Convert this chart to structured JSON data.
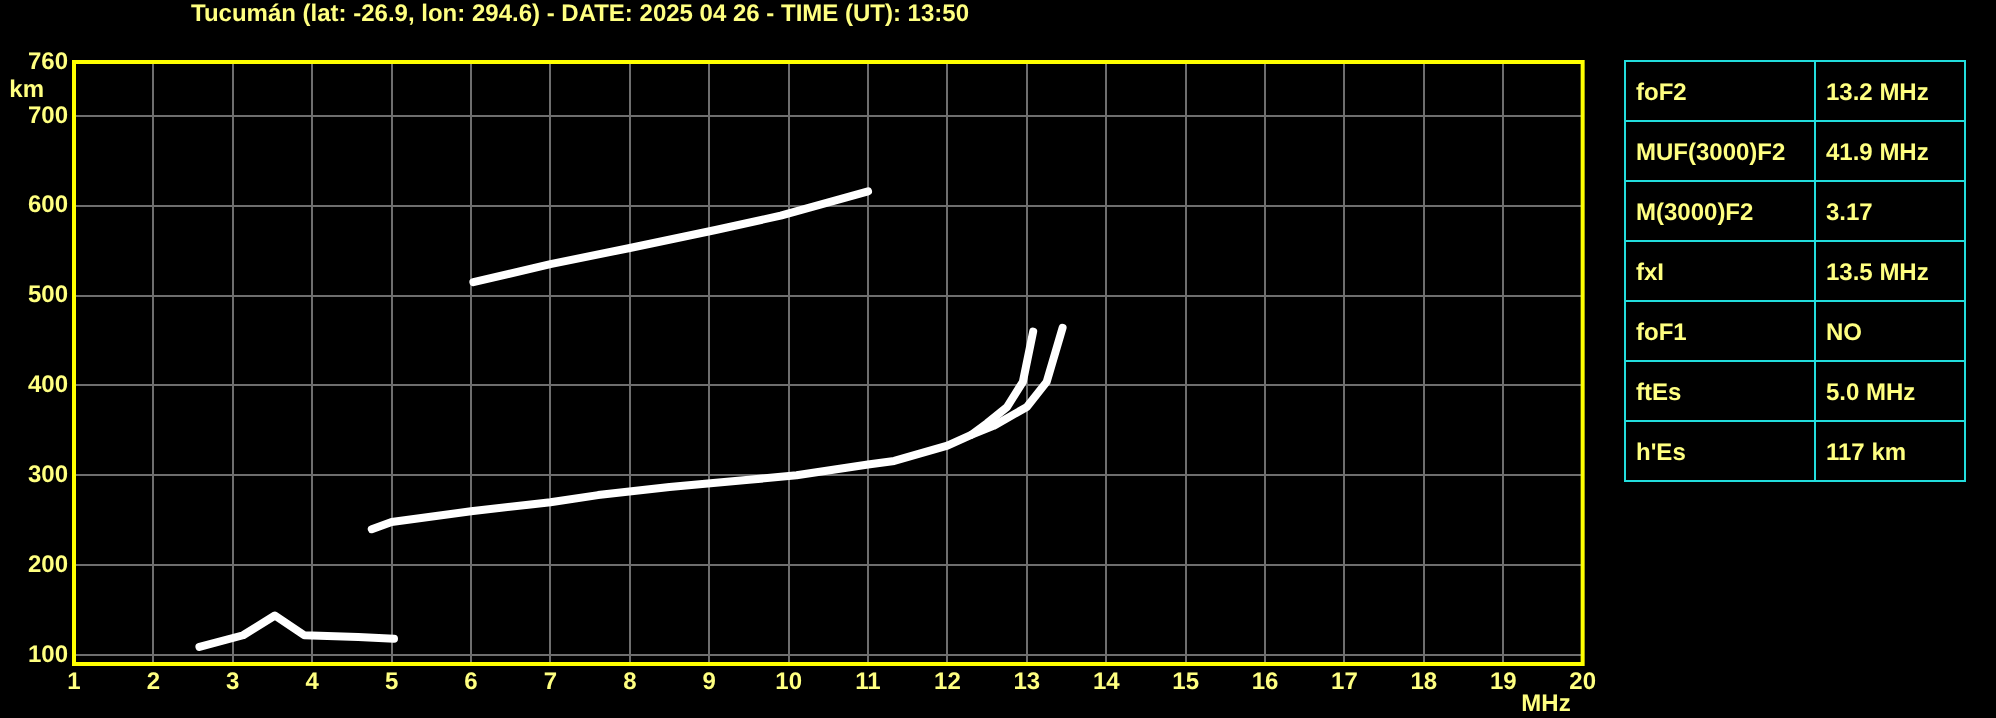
{
  "chart_data": [
    {
      "type": "line",
      "title": "Tucumán (lat: -26.9, lon: 294.6) - DATE: 2025 04 26 - TIME (UT): 13:50",
      "xlabel": "MHz",
      "ylabel": "km",
      "xlim": [
        1,
        20
      ],
      "xticks": [
        1,
        2,
        3,
        4,
        5,
        6,
        7,
        8,
        9,
        10,
        11,
        12,
        13,
        14,
        15,
        16,
        17,
        18,
        19,
        20
      ],
      "ylim": [
        90,
        760
      ],
      "yticks": [
        100,
        200,
        300,
        400,
        500,
        600,
        700,
        760
      ],
      "grid": true,
      "legend": false,
      "marker": "none",
      "line_style": "solid",
      "series": [
        {
          "color": "#ffffff",
          "x": [
            2.58,
            3.13,
            3.53,
            3.9,
            4.58,
            5.03
          ],
          "values": [
            109,
            122,
            144,
            122,
            120,
            118
          ]
        },
        {
          "color": "#ffffff",
          "x": [
            4.75,
            5.0,
            6.0,
            7.0,
            7.6,
            8.5,
            9.5,
            10.1,
            11.0,
            11.33,
            12.0,
            12.3,
            12.58,
            13.0,
            13.25,
            13.4,
            13.45
          ],
          "values": [
            240,
            248,
            260,
            270,
            278,
            287,
            295,
            300,
            312,
            316,
            333,
            345,
            355,
            376,
            404,
            449,
            464
          ]
        },
        {
          "color": "#ffffff",
          "x": [
            12.3,
            12.5,
            12.75,
            12.95,
            13.08
          ],
          "values": [
            345,
            358,
            376,
            404,
            460
          ]
        },
        {
          "color": "#ffffff",
          "x": [
            6.03,
            7.0,
            8.0,
            9.08,
            9.9,
            11.0
          ],
          "values": [
            515,
            535,
            553,
            573,
            589,
            616
          ]
        }
      ]
    },
    {
      "type": "other",
      "categories": [
        "foF2",
        "MUF(3000)F2",
        "M(3000)F2",
        "fxI",
        "foF1",
        "ftEs",
        "h'Es"
      ],
      "value_labels": [
        "13.2 MHz",
        "41.9 MHz",
        "3.17",
        "13.5 MHz",
        "NO",
        "5.0 MHz",
        "117 km"
      ]
    }
  ]
}
